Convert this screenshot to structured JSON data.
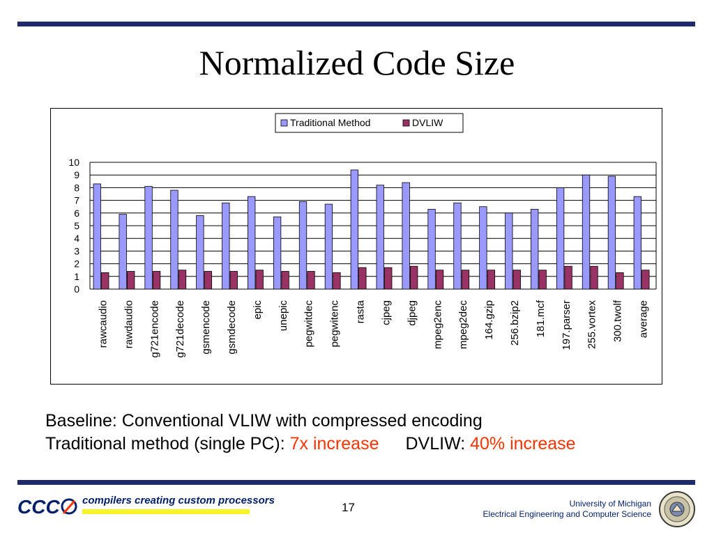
{
  "slide": {
    "title": "Normalized Code Size",
    "caption_line1": "Baseline: Conventional VLIW with compressed encoding",
    "caption_line2_prefix": "Traditional method (single PC): ",
    "caption_line2_trad_value": "7x increase",
    "caption_line2_dvliw_label": "DVLIW: ",
    "caption_line2_dvliw_value": "40% increase",
    "footer_tagline": "compilers creating custom processors",
    "footer_logo_text": "CCC",
    "page_number": "17",
    "footer_university": "University of Michigan",
    "footer_department": "Electrical Engineering and Computer Science"
  },
  "colors": {
    "navy": "#1f2a6b",
    "accent_red": "#ff3300",
    "trad_bar": "#9999ff",
    "dvliw_bar": "#993366",
    "tagline_highlight": "#f7f52a"
  },
  "chart_data": {
    "type": "bar",
    "categories": [
      "rawcaudio",
      "rawdaudio",
      "g721encode",
      "g721decode",
      "gsmencode",
      "gsmdecode",
      "epic",
      "unepic",
      "pegwitdec",
      "pegwitenc",
      "rasta",
      "cjpeg",
      "djpeg",
      "mpeg2enc",
      "mpeg2dec",
      "164.gzip",
      "256.bzip2",
      "181.mcf",
      "197.parser",
      "255.vortex",
      "300.twolf",
      "average"
    ],
    "series": [
      {
        "name": "Traditional Method",
        "values": [
          8.3,
          5.9,
          8.1,
          7.8,
          5.8,
          6.8,
          7.3,
          5.7,
          6.9,
          6.7,
          9.4,
          8.2,
          8.4,
          6.3,
          6.8,
          6.5,
          6.0,
          6.3,
          8.0,
          9.0,
          8.9,
          7.3
        ]
      },
      {
        "name": "DVLIW",
        "values": [
          1.3,
          1.4,
          1.4,
          1.5,
          1.4,
          1.4,
          1.5,
          1.4,
          1.4,
          1.3,
          1.7,
          1.7,
          1.8,
          1.5,
          1.5,
          1.5,
          1.5,
          1.5,
          1.8,
          1.8,
          1.3,
          1.5
        ]
      }
    ],
    "ylim": [
      0,
      10
    ],
    "yticks": [
      "0",
      "1",
      "2",
      "3",
      "4",
      "5",
      "6",
      "7",
      "8",
      "9",
      "10"
    ],
    "grid": true,
    "legend": "top-center"
  }
}
